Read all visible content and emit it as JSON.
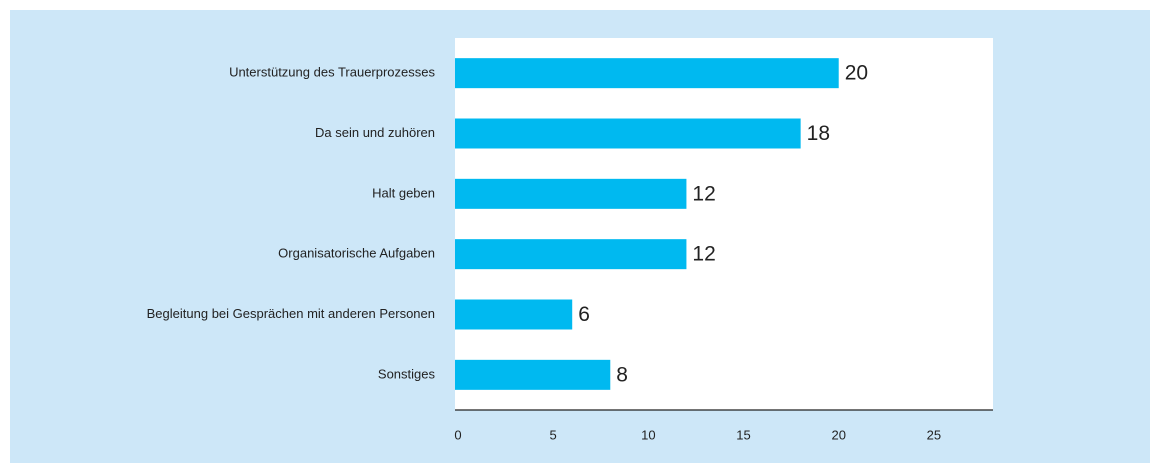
{
  "chart_data": {
    "type": "bar",
    "orientation": "horizontal",
    "categories": [
      "Unterstützung des Trauerprozesses",
      "Da sein und zuhören",
      "Halt geben",
      "Organisatorische Aufgaben",
      "Begleitung bei Gesprächen mit anderen Personen",
      "Sonstiges"
    ],
    "values": [
      20,
      18,
      12,
      12,
      6,
      8
    ],
    "color": "#00b9f0",
    "xlim": [
      0,
      28
    ],
    "xticks": [
      0,
      5,
      10,
      15,
      20,
      25
    ],
    "grid": false
  }
}
